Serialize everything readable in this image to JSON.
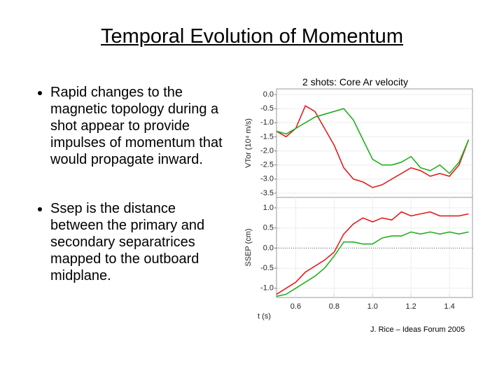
{
  "title": "Temporal Evolution of Momentum",
  "bullets": [
    "Rapid changes to the magnetic topology during a shot appear to provide impulses of momentum that would propagate inward.",
    "Ssep is the distance between the primary and secondary separatrices mapped to the outboard midplane."
  ],
  "chart_caption": "2 shots: Core Ar velocity",
  "credit": "J. Rice – Ideas Forum 2005",
  "chart_data": [
    {
      "type": "line",
      "ylabel": "VTor (10⁴ m/s)",
      "x": [
        0.5,
        0.55,
        0.6,
        0.65,
        0.7,
        0.75,
        0.8,
        0.85,
        0.9,
        0.95,
        1.0,
        1.05,
        1.1,
        1.15,
        1.2,
        1.25,
        1.3,
        1.35,
        1.4,
        1.45,
        1.5
      ],
      "series": [
        {
          "color": "#e02020",
          "values": [
            -1.3,
            -1.5,
            -1.2,
            -0.4,
            -0.6,
            -1.2,
            -1.8,
            -2.6,
            -3.0,
            -3.1,
            -3.3,
            -3.2,
            -3.0,
            -2.8,
            -2.6,
            -2.7,
            -2.9,
            -2.8,
            -2.9,
            -2.5,
            -1.6
          ]
        },
        {
          "color": "#20b020",
          "values": [
            -1.3,
            -1.4,
            -1.2,
            -1.0,
            -0.8,
            -0.7,
            -0.6,
            -0.5,
            -0.9,
            -1.6,
            -2.3,
            -2.5,
            -2.5,
            -2.4,
            -2.2,
            -2.6,
            -2.7,
            -2.5,
            -2.8,
            -2.4,
            -1.6
          ]
        }
      ],
      "xlim": [
        0.5,
        1.52
      ],
      "ylim": [
        -3.65,
        0.2
      ],
      "yticks": [
        {
          "value": 0,
          "label": "0.0"
        },
        -0.5,
        {
          "value": -1,
          "label": "-1.0"
        },
        -1.5,
        {
          "value": -2,
          "label": "-2.0"
        },
        -2.5,
        {
          "value": -3,
          "label": "-3.0"
        },
        -3.5
      ],
      "grid": true
    },
    {
      "type": "line",
      "ylabel": "SSEP (cm)",
      "xlabel": "t (s)",
      "x": [
        0.5,
        0.55,
        0.6,
        0.65,
        0.7,
        0.75,
        0.8,
        0.85,
        0.9,
        0.95,
        1.0,
        1.05,
        1.1,
        1.15,
        1.2,
        1.25,
        1.3,
        1.35,
        1.4,
        1.45,
        1.5
      ],
      "series": [
        {
          "color": "#e02020",
          "values": [
            -1.15,
            -1.0,
            -0.85,
            -0.6,
            -0.45,
            -0.3,
            -0.1,
            0.35,
            0.6,
            0.75,
            0.65,
            0.75,
            0.7,
            0.9,
            0.8,
            0.85,
            0.9,
            0.8,
            0.8,
            0.8,
            0.85
          ]
        },
        {
          "color": "#20b020",
          "values": [
            -1.2,
            -1.15,
            -1.0,
            -0.85,
            -0.7,
            -0.5,
            -0.2,
            0.15,
            0.15,
            0.1,
            0.1,
            0.25,
            0.3,
            0.3,
            0.4,
            0.35,
            0.4,
            0.35,
            0.4,
            0.35,
            0.4
          ]
        }
      ],
      "xlim": [
        0.5,
        1.52
      ],
      "ylim": [
        -1.23,
        1.26
      ],
      "yticks": [
        {
          "value": 1,
          "label": "1.0"
        },
        0.5,
        {
          "value": 0,
          "label": "0.0"
        },
        -0.5,
        {
          "value": -1,
          "label": "-1.0"
        }
      ],
      "xticks": [
        0.6,
        0.8,
        {
          "value": 1,
          "label": "1.0"
        },
        1.2,
        1.4
      ],
      "reference_line": 0,
      "grid": true
    }
  ]
}
